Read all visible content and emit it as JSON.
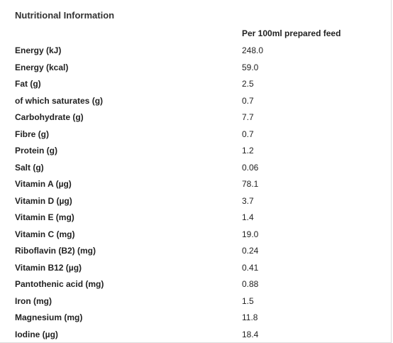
{
  "title": "Nutritional Information",
  "column_header": "Per 100ml prepared feed",
  "rows": [
    {
      "label": "Energy (kJ)",
      "value": "248.0"
    },
    {
      "label": "Energy (kcal)",
      "value": "59.0"
    },
    {
      "label": "Fat (g)",
      "value": "2.5"
    },
    {
      "label": "of which saturates (g)",
      "value": "0.7"
    },
    {
      "label": "Carbohydrate (g)",
      "value": "7.7"
    },
    {
      "label": "Fibre (g)",
      "value": "0.7"
    },
    {
      "label": "Protein (g)",
      "value": "1.2"
    },
    {
      "label": "Salt (g)",
      "value": "0.06"
    },
    {
      "label": "Vitamin A (µg)",
      "value": "78.1"
    },
    {
      "label": "Vitamin D (µg)",
      "value": "3.7"
    },
    {
      "label": "Vitamin E (mg)",
      "value": "1.4"
    },
    {
      "label": "Vitamin C (mg)",
      "value": "19.0"
    },
    {
      "label": "Riboflavin (B2) (mg)",
      "value": "0.24"
    },
    {
      "label": "Vitamin B12 (µg)",
      "value": "0.41"
    },
    {
      "label": "Pantothenic acid (mg)",
      "value": "0.88"
    },
    {
      "label": "Iron (mg)",
      "value": "1.5"
    },
    {
      "label": "Magnesium (mg)",
      "value": "11.8"
    },
    {
      "label": "Iodine (µg)",
      "value": "18.4"
    }
  ]
}
